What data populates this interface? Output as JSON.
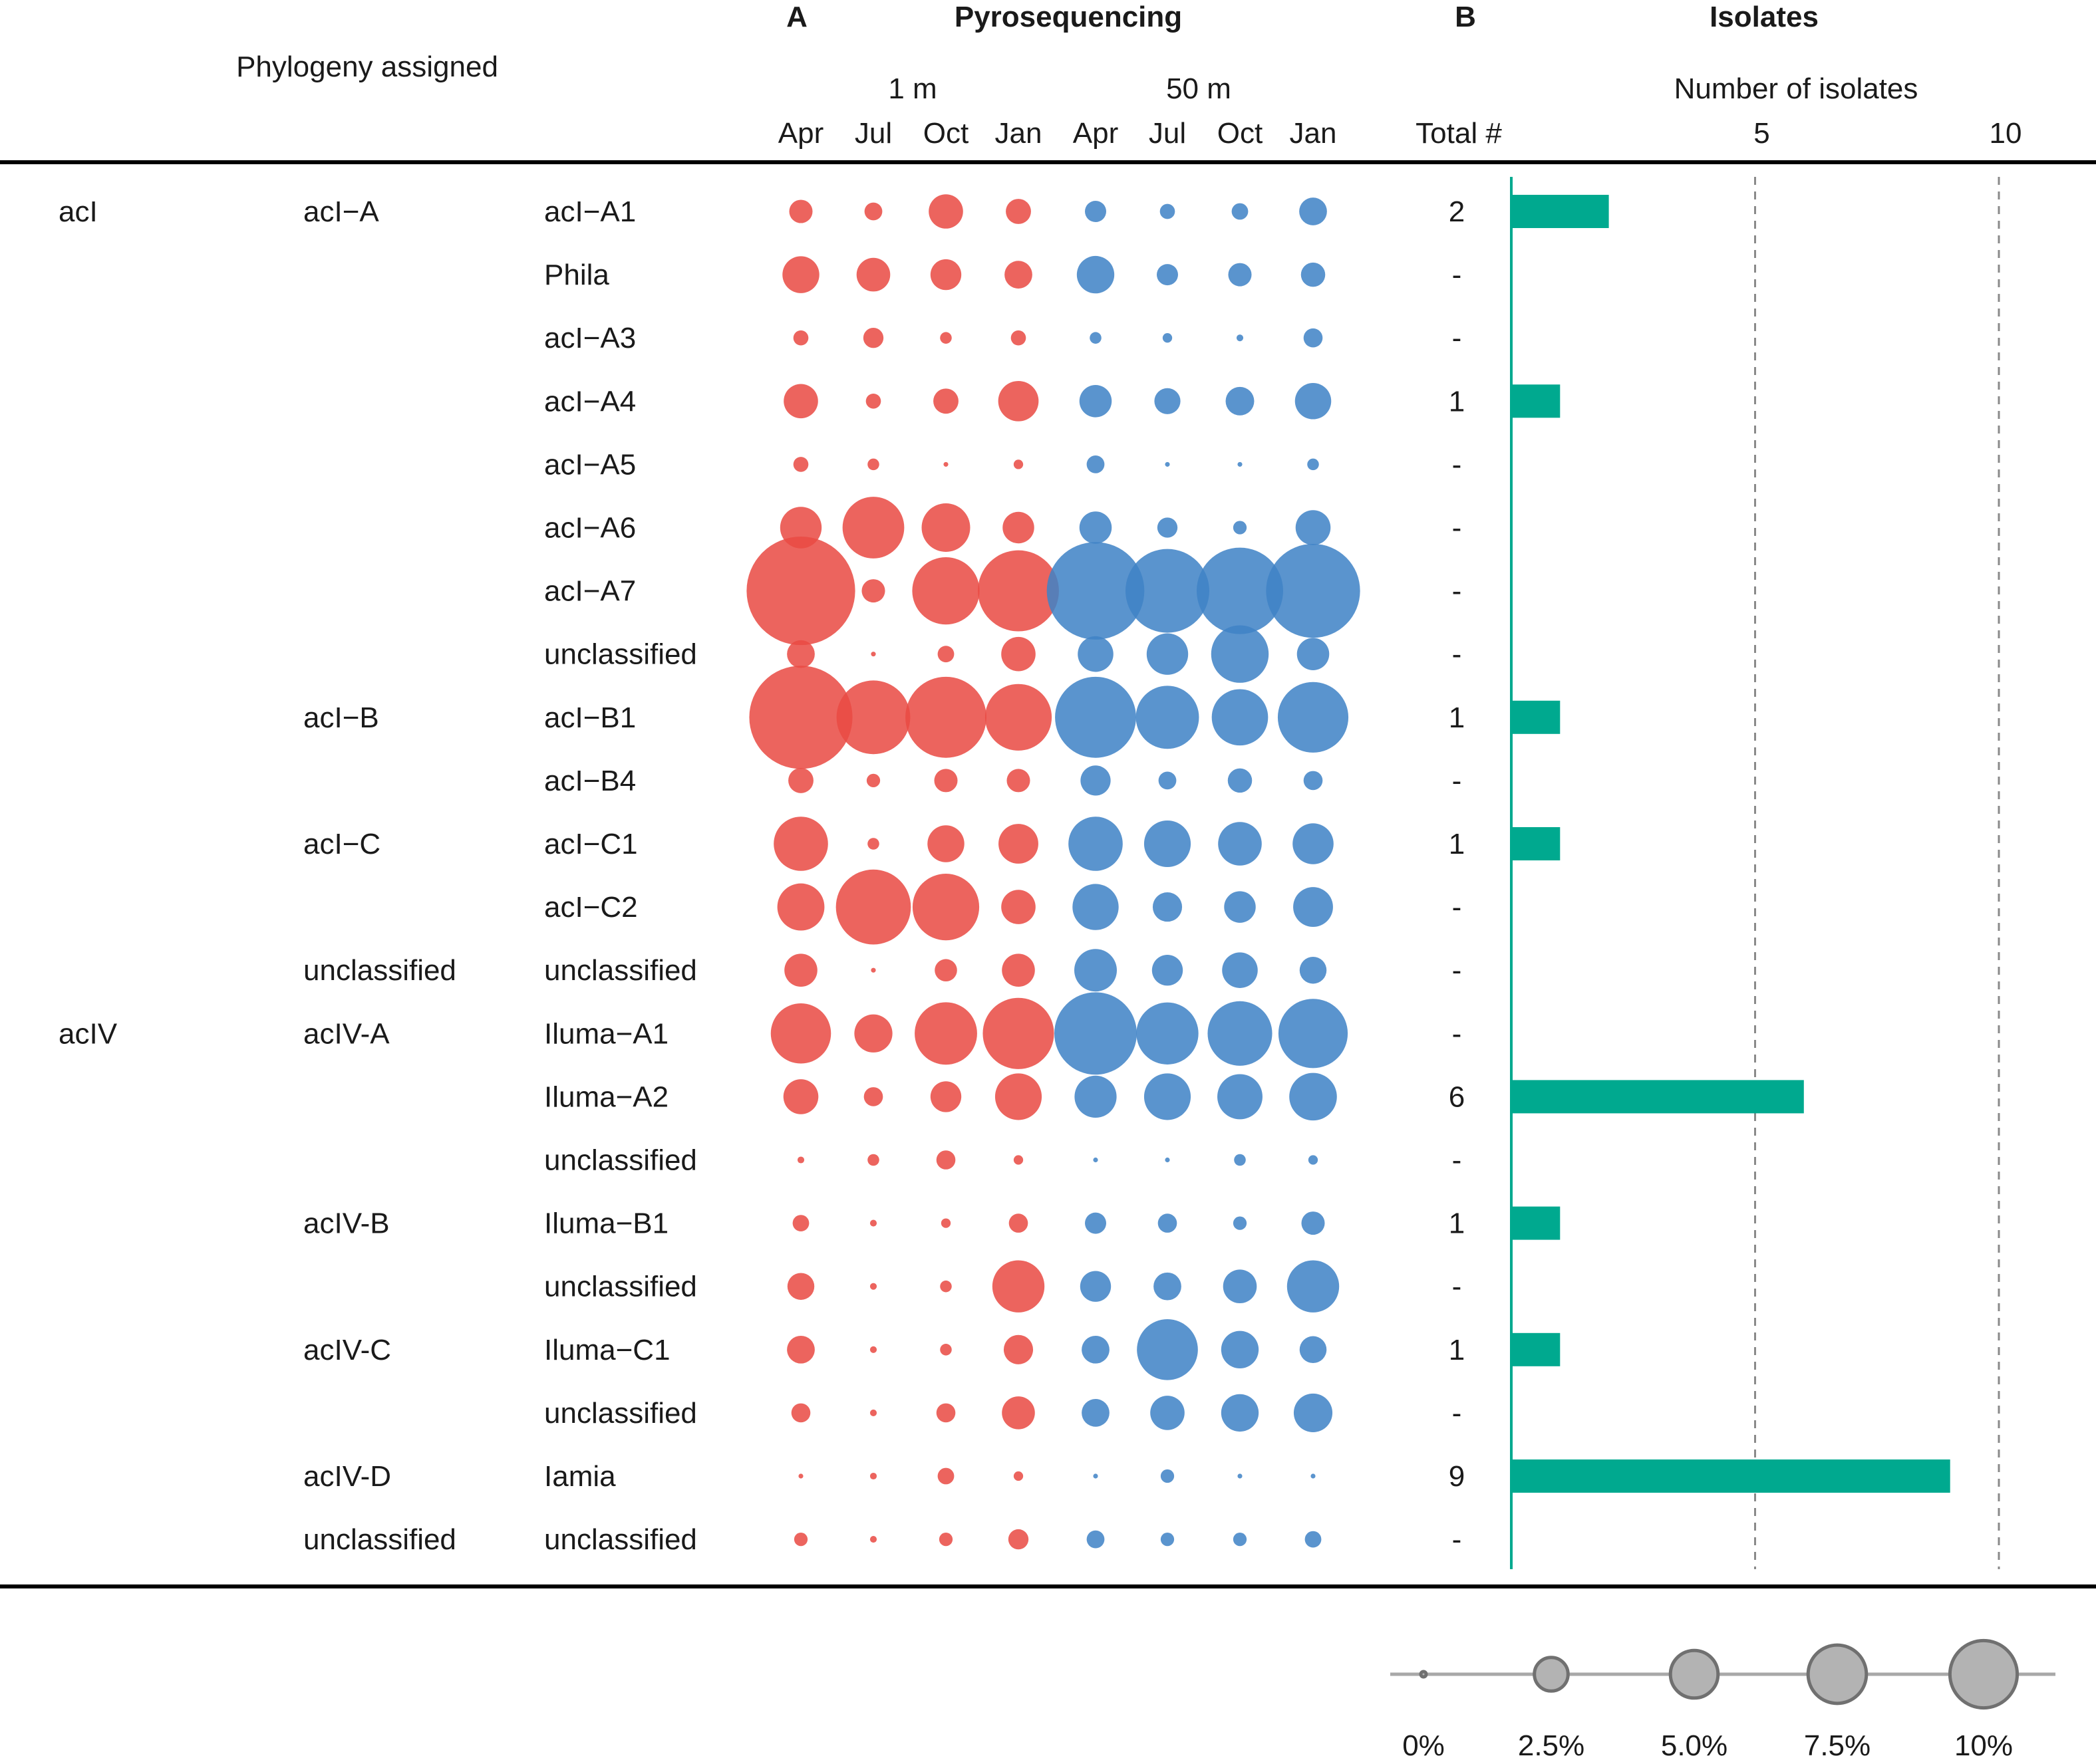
{
  "chart_data": {
    "type": "bubble-table-with-bar",
    "panel_a": {
      "letter": "A",
      "title": "Pyrosequencing",
      "depth_groups": [
        {
          "name": "1 m",
          "color": "#e94b43"
        },
        {
          "name": "50 m",
          "color": "#3f82c6"
        }
      ],
      "months": [
        "Apr",
        "Jul",
        "Oct",
        "Jan",
        "Apr",
        "Jul",
        "Oct",
        "Jan"
      ],
      "value_unit": "% relative abundance (estimated)"
    },
    "panel_b": {
      "letter": "B",
      "title": "Isolates",
      "total_header": "Total #",
      "axis_label": "Number of isolates",
      "ticks": [
        5,
        10
      ],
      "xlim": [
        0,
        10
      ],
      "bar_color": "#00a98f"
    },
    "phylogeny_header": "Phylogeny assigned",
    "rows": [
      {
        "lineage": "acI",
        "clade": "acI−A",
        "tribe": "acI−A1",
        "abund": [
          1.2,
          0.7,
          2.6,
          1.4,
          1.0,
          0.5,
          0.6,
          1.7
        ],
        "total": "2",
        "isolates": 2
      },
      {
        "lineage": "",
        "clade": "",
        "tribe": "Phila",
        "abund": [
          3.0,
          2.5,
          2.1,
          1.7,
          3.1,
          1.0,
          1.2,
          1.3
        ],
        "total": "-",
        "isolates": 0
      },
      {
        "lineage": "",
        "clade": "",
        "tribe": "acI−A3",
        "abund": [
          0.5,
          0.9,
          0.3,
          0.5,
          0.3,
          0.2,
          0.1,
          0.8
        ],
        "total": "-",
        "isolates": 0
      },
      {
        "lineage": "",
        "clade": "",
        "tribe": "acI−A4",
        "abund": [
          2.6,
          0.5,
          1.4,
          3.6,
          2.3,
          1.5,
          1.8,
          2.9
        ],
        "total": "1",
        "isolates": 1
      },
      {
        "lineage": "",
        "clade": "",
        "tribe": "acI−A5",
        "abund": [
          0.5,
          0.3,
          0.05,
          0.2,
          0.7,
          0.05,
          0.05,
          0.3
        ],
        "total": "-",
        "isolates": 0
      },
      {
        "lineage": "",
        "clade": "",
        "tribe": "acI−A6",
        "abund": [
          3.8,
          8.4,
          5.2,
          2.2,
          2.3,
          0.9,
          0.4,
          2.7
        ],
        "total": "-",
        "isolates": 0
      },
      {
        "lineage": "",
        "clade": "",
        "tribe": "acI−A7",
        "abund": [
          26.0,
          1.2,
          10.0,
          14.5,
          21.0,
          15.5,
          16.5,
          19.5
        ],
        "total": "-",
        "isolates": 0
      },
      {
        "lineage": "",
        "clade": "",
        "tribe": "unclassified",
        "abund": [
          1.7,
          0.05,
          0.6,
          2.6,
          2.8,
          3.8,
          7.3,
          2.3
        ],
        "total": "-",
        "isolates": 0
      },
      {
        "lineage": "",
        "clade": "acI−B",
        "tribe": "acI−B1",
        "abund": [
          23.5,
          12.0,
          14.5,
          9.8,
          14.5,
          8.8,
          7.0,
          11.0
        ],
        "total": "1",
        "isolates": 1
      },
      {
        "lineage": "",
        "clade": "",
        "tribe": "acI−B4",
        "abund": [
          1.4,
          0.4,
          1.2,
          1.2,
          2.0,
          0.7,
          1.3,
          0.8
        ],
        "total": "-",
        "isolates": 0
      },
      {
        "lineage": "",
        "clade": "acI−C",
        "tribe": "acI−C1",
        "abund": [
          6.5,
          0.3,
          3.0,
          3.5,
          6.5,
          4.8,
          4.2,
          3.7
        ],
        "total": "1",
        "isolates": 1
      },
      {
        "lineage": "",
        "clade": "",
        "tribe": "acI−C2",
        "abund": [
          4.9,
          12.4,
          9.8,
          2.6,
          4.7,
          1.9,
          2.2,
          3.5
        ],
        "total": "-",
        "isolates": 0
      },
      {
        "lineage": "",
        "clade": "unclassified",
        "tribe": "unclassified",
        "abund": [
          2.4,
          0.05,
          1.1,
          2.4,
          4.0,
          2.1,
          2.8,
          1.6
        ],
        "total": "-",
        "isolates": 0
      },
      {
        "lineage": "acIV",
        "clade": "acIV-A",
        "tribe": "Iluma−A1",
        "abund": [
          8.0,
          3.2,
          8.6,
          11.2,
          15.0,
          8.5,
          9.2,
          10.6
        ],
        "total": "-",
        "isolates": 0
      },
      {
        "lineage": "",
        "clade": "",
        "tribe": "Iluma−A2",
        "abund": [
          2.7,
          0.8,
          2.1,
          4.8,
          3.9,
          4.8,
          4.5,
          5.0
        ],
        "total": "6",
        "isolates": 6
      },
      {
        "lineage": "",
        "clade": "",
        "tribe": "unclassified",
        "abund": [
          0.1,
          0.3,
          0.8,
          0.2,
          0.05,
          0.05,
          0.3,
          0.2
        ],
        "total": "-",
        "isolates": 0
      },
      {
        "lineage": "",
        "clade": "acIV-B",
        "tribe": "Iluma−B1",
        "abund": [
          0.6,
          0.1,
          0.2,
          0.8,
          1.0,
          0.8,
          0.4,
          1.2
        ],
        "total": "1",
        "isolates": 1
      },
      {
        "lineage": "",
        "clade": "",
        "tribe": "unclassified",
        "abund": [
          1.6,
          0.1,
          0.3,
          6.0,
          2.1,
          1.7,
          2.5,
          6.0
        ],
        "total": "-",
        "isolates": 0
      },
      {
        "lineage": "",
        "clade": "acIV-C",
        "tribe": "Iluma−C1",
        "abund": [
          1.7,
          0.1,
          0.3,
          1.9,
          1.7,
          8.2,
          3.1,
          1.6
        ],
        "total": "1",
        "isolates": 1
      },
      {
        "lineage": "",
        "clade": "",
        "tribe": "unclassified",
        "abund": [
          0.8,
          0.1,
          0.8,
          2.4,
          1.7,
          2.6,
          3.1,
          3.3
        ],
        "total": "-",
        "isolates": 0
      },
      {
        "lineage": "",
        "clade": "acIV-D",
        "tribe": "Iamia",
        "abund": [
          0.05,
          0.1,
          0.6,
          0.2,
          0.05,
          0.4,
          0.05,
          0.05
        ],
        "total": "9",
        "isolates": 9
      },
      {
        "lineage": "",
        "clade": "unclassified",
        "tribe": "unclassified",
        "abund": [
          0.4,
          0.1,
          0.4,
          0.9,
          0.7,
          0.4,
          0.4,
          0.6
        ],
        "total": "-",
        "isolates": 0
      }
    ],
    "size_legend": [
      {
        "label": "0%",
        "value": 0
      },
      {
        "label": "2.5%",
        "value": 2.5
      },
      {
        "label": "5.0%",
        "value": 5.0
      },
      {
        "label": "7.5%",
        "value": 7.5
      },
      {
        "label": "10%",
        "value": 10
      }
    ]
  }
}
